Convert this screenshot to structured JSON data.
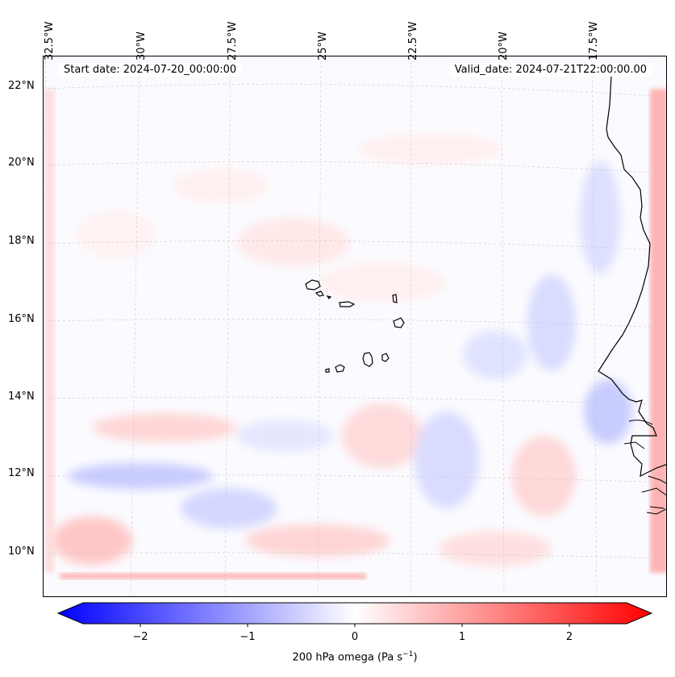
{
  "map": {
    "start_date": "Start date: 2024-07-20_00:00:00",
    "valid_date": "Valid_date: 2024-07-21T22:00:00.00",
    "lon_labels": [
      "32.5°W",
      "30°W",
      "27.5°W",
      "25°W",
      "22.5°W",
      "20°W",
      "17.5°W"
    ],
    "lat_labels": [
      "22°N",
      "20°N",
      "18°N",
      "16°N",
      "14°N",
      "12°N",
      "10°N"
    ],
    "field": "200 hPa omega",
    "features": [
      "Cape Verde islands",
      "West Africa coastline"
    ]
  },
  "colorbar": {
    "label_main": "200 hPa omega (Pa s",
    "label_exp": "−1",
    "label_end": ")",
    "ticks": [
      "−2",
      "−1",
      "0",
      "1",
      "2"
    ],
    "range": [
      -2.7,
      2.7
    ],
    "colormap": "bwr",
    "colors": {
      "min": "#0000ff",
      "mid": "#ffffff",
      "max": "#ff0000"
    }
  }
}
